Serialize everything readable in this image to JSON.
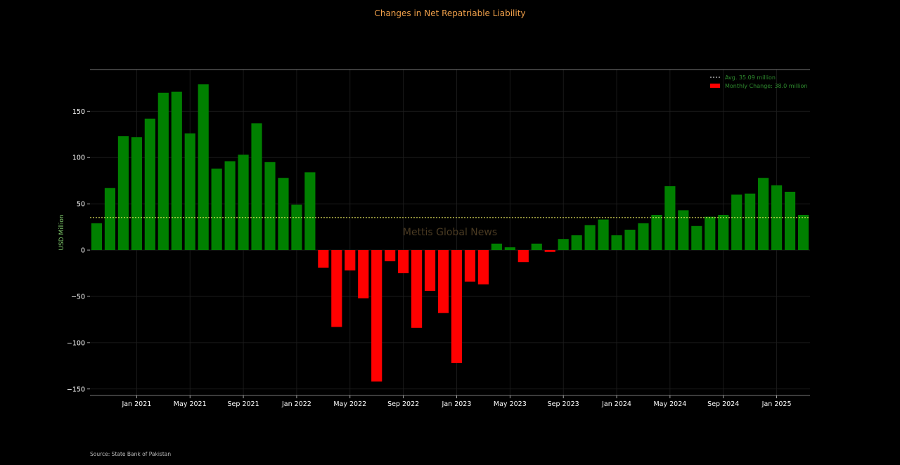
{
  "chart_data": {
    "type": "bar",
    "title": "Changes in Net Repatriable Liability",
    "ylabel": "USD Million",
    "xlabel": "",
    "ylim": [
      -157,
      195
    ],
    "yticks": [
      -150,
      -100,
      -50,
      0,
      50,
      100,
      150
    ],
    "ytick_labels": [
      "−150",
      "−100",
      "−50",
      "0",
      "50",
      "100",
      "150"
    ],
    "xticks": [
      {
        "label": "Jan 2021",
        "index": 3
      },
      {
        "label": "May 2021",
        "index": 7
      },
      {
        "label": "Sep 2021",
        "index": 11
      },
      {
        "label": "Jan 2022",
        "index": 15
      },
      {
        "label": "May 2022",
        "index": 19
      },
      {
        "label": "Sep 2022",
        "index": 23
      },
      {
        "label": "Jan 2023",
        "index": 27
      },
      {
        "label": "May 2023",
        "index": 31
      },
      {
        "label": "Sep 2023",
        "index": 35
      },
      {
        "label": "Jan 2024",
        "index": 39
      },
      {
        "label": "May 2024",
        "index": 43
      },
      {
        "label": "Sep 2024",
        "index": 47
      },
      {
        "label": "Jan 2025",
        "index": 51
      }
    ],
    "categories": [
      "Oct 2020",
      "Nov 2020",
      "Dec 2020",
      "Jan 2021",
      "Feb 2021",
      "Mar 2021",
      "Apr 2021",
      "May 2021",
      "Jun 2021",
      "Jul 2021",
      "Aug 2021",
      "Sep 2021",
      "Oct 2021",
      "Nov 2021",
      "Dec 2021",
      "Jan 2022",
      "Feb 2022",
      "Mar 2022",
      "Apr 2022",
      "May 2022",
      "Jun 2022",
      "Jul 2022",
      "Aug 2022",
      "Sep 2022",
      "Oct 2022",
      "Nov 2022",
      "Dec 2022",
      "Jan 2023",
      "Feb 2023",
      "Mar 2023",
      "Apr 2023",
      "May 2023",
      "Jun 2023",
      "Jul 2023",
      "Aug 2023",
      "Sep 2023",
      "Oct 2023",
      "Nov 2023",
      "Dec 2023",
      "Jan 2024",
      "Feb 2024",
      "Mar 2024",
      "Apr 2024",
      "May 2024",
      "Jun 2024",
      "Jul 2024",
      "Aug 2024",
      "Sep 2024",
      "Oct 2024",
      "Nov 2024",
      "Dec 2024",
      "Jan 2025",
      "Feb 2025",
      "Mar 2025"
    ],
    "values": [
      29,
      67,
      123,
      122,
      142,
      170,
      171,
      126,
      179,
      88,
      96,
      103,
      137,
      95,
      78,
      49,
      84,
      -19,
      -83,
      -22,
      -52,
      -142,
      -12,
      -25,
      -84,
      -44,
      -68,
      -122,
      -34,
      -37,
      7,
      3,
      -13,
      7,
      -2,
      12,
      16,
      27,
      33,
      16,
      22,
      29,
      38,
      69,
      43,
      26,
      36,
      38,
      60,
      61,
      78,
      70,
      63,
      38
    ],
    "positive_color": "#008000",
    "negative_color": "#ff0000",
    "average": 35.09,
    "average_line_color": "#ffff66",
    "grid": true,
    "legend_position": "top-right",
    "legend": [
      {
        "label": "Avg. 35.09 million",
        "kind": "dashed-line",
        "color": "#ffffff"
      },
      {
        "label": "Monthly Change: 38.0 million",
        "kind": "patch",
        "color": "#ff0000"
      }
    ],
    "watermark": "Mettis Global News",
    "source": "Source: State Bank of Pakistan"
  }
}
